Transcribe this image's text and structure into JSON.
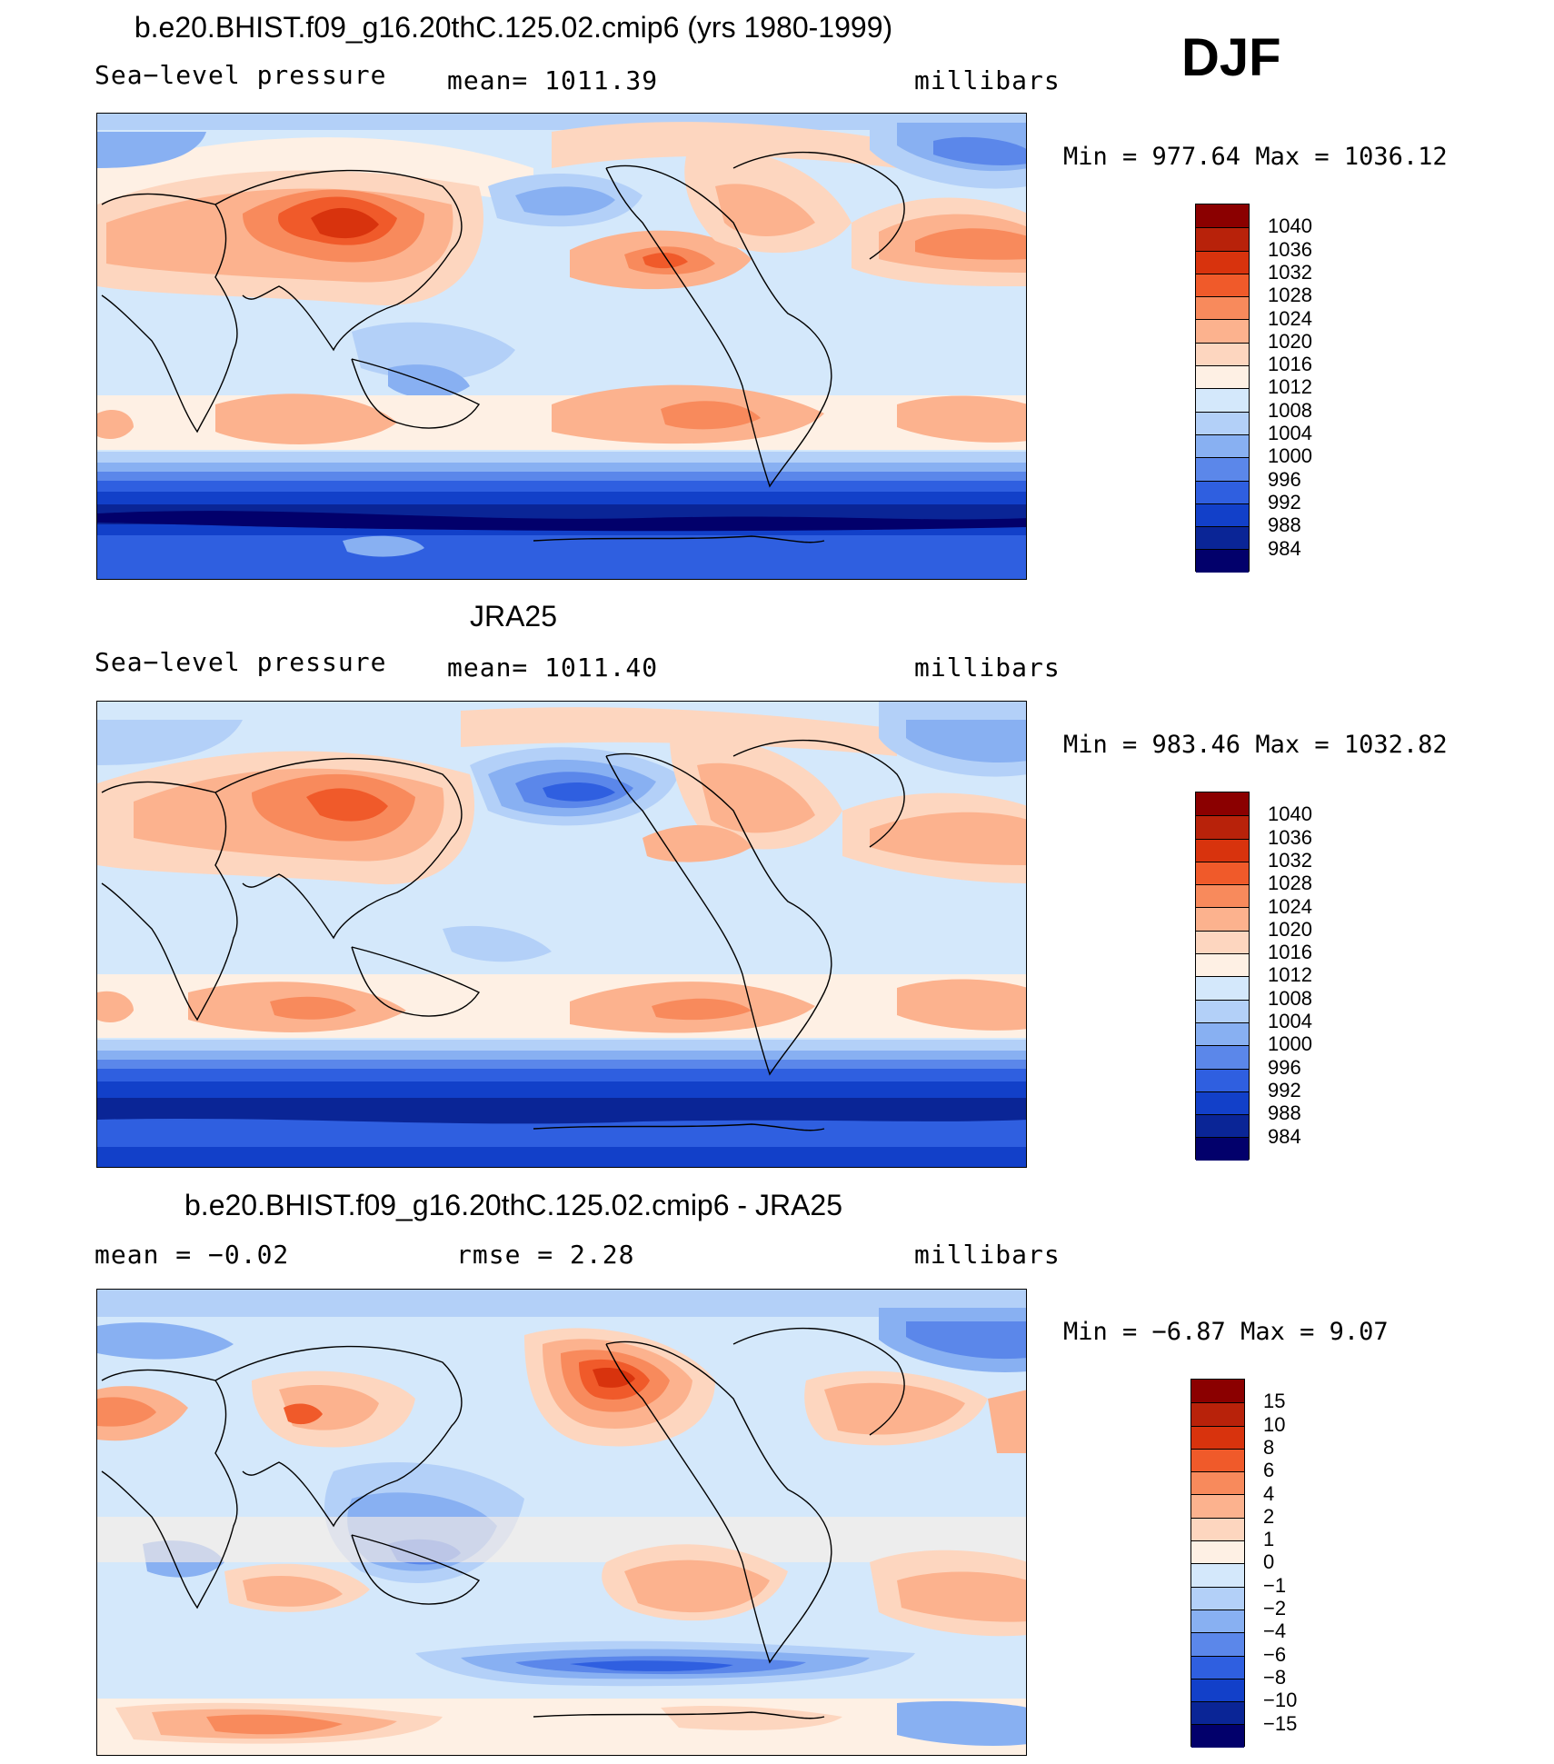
{
  "season": "DJF",
  "panels": [
    {
      "id": "model",
      "title": "b.e20.BHIST.f09_g16.20thC.125.02.cmip6 (yrs 1980-1999)",
      "left_label": "Sea−level pressure",
      "center_label": "mean=  1011.39",
      "right_label": "millibars",
      "min_max": "Min  =  977.64 Max  =  1036.12"
    },
    {
      "id": "obs",
      "title": "JRA25",
      "left_label": "Sea−level pressure",
      "center_label": "mean=  1011.40",
      "right_label": "millibars",
      "min_max": "Min  =  983.46 Max  =  1032.82"
    },
    {
      "id": "diff",
      "title": "b.e20.BHIST.f09_g16.20thC.125.02.cmip6 - JRA25",
      "left_label": "mean  =    −0.02",
      "center_label": "rmse  =     2.28",
      "right_label": "millibars",
      "min_max": "Min  =   −6.87 Max  =     9.07"
    }
  ],
  "chart_data": [
    {
      "type": "heatmap",
      "title": "b.e20.BHIST.f09_g16.20thC.125.02.cmip6 (yrs 1980-1999)",
      "variable": "Sea-level pressure",
      "units": "millibars",
      "mean": 1011.39,
      "min": 977.64,
      "max": 1036.12,
      "colorbar_levels": [
        1040,
        1036,
        1032,
        1028,
        1024,
        1020,
        1016,
        1012,
        1008,
        1004,
        1000,
        996,
        992,
        988,
        984
      ],
      "colorbar_colors": [
        "#8b0000",
        "#b8220a",
        "#d8330d",
        "#f05a2a",
        "#f88a5c",
        "#fcb28e",
        "#fdd6bf",
        "#fef0e4",
        "#d4e8fb",
        "#b3d0f8",
        "#88b0f2",
        "#5b87ea",
        "#2f5fe0",
        "#1240c9",
        "#0a2596",
        "#02006b"
      ]
    },
    {
      "type": "heatmap",
      "title": "JRA25",
      "variable": "Sea-level pressure",
      "units": "millibars",
      "mean": 1011.4,
      "min": 983.46,
      "max": 1032.82,
      "colorbar_levels": [
        1040,
        1036,
        1032,
        1028,
        1024,
        1020,
        1016,
        1012,
        1008,
        1004,
        1000,
        996,
        992,
        988,
        984
      ],
      "colorbar_colors": [
        "#8b0000",
        "#b8220a",
        "#d8330d",
        "#f05a2a",
        "#f88a5c",
        "#fcb28e",
        "#fdd6bf",
        "#fef0e4",
        "#d4e8fb",
        "#b3d0f8",
        "#88b0f2",
        "#5b87ea",
        "#2f5fe0",
        "#1240c9",
        "#0a2596",
        "#02006b"
      ]
    },
    {
      "type": "heatmap",
      "title": "b.e20.BHIST.f09_g16.20thC.125.02.cmip6 - JRA25",
      "units": "millibars",
      "mean": -0.02,
      "rmse": 2.28,
      "min": -6.87,
      "max": 9.07,
      "colorbar_levels": [
        "15",
        "10",
        "8",
        "6",
        "4",
        "2",
        "1",
        "0",
        "−1",
        "−2",
        "−4",
        "−6",
        "−8",
        "−10",
        "−15"
      ],
      "colorbar_colors": [
        "#8b0000",
        "#b8220a",
        "#d8330d",
        "#f05a2a",
        "#f88a5c",
        "#fcb28e",
        "#fdd6bf",
        "#fef0e4",
        "#d4e8fb",
        "#b3d0f8",
        "#88b0f2",
        "#5b87ea",
        "#2f5fe0",
        "#1240c9",
        "#0a2596",
        "#02006b"
      ]
    }
  ]
}
